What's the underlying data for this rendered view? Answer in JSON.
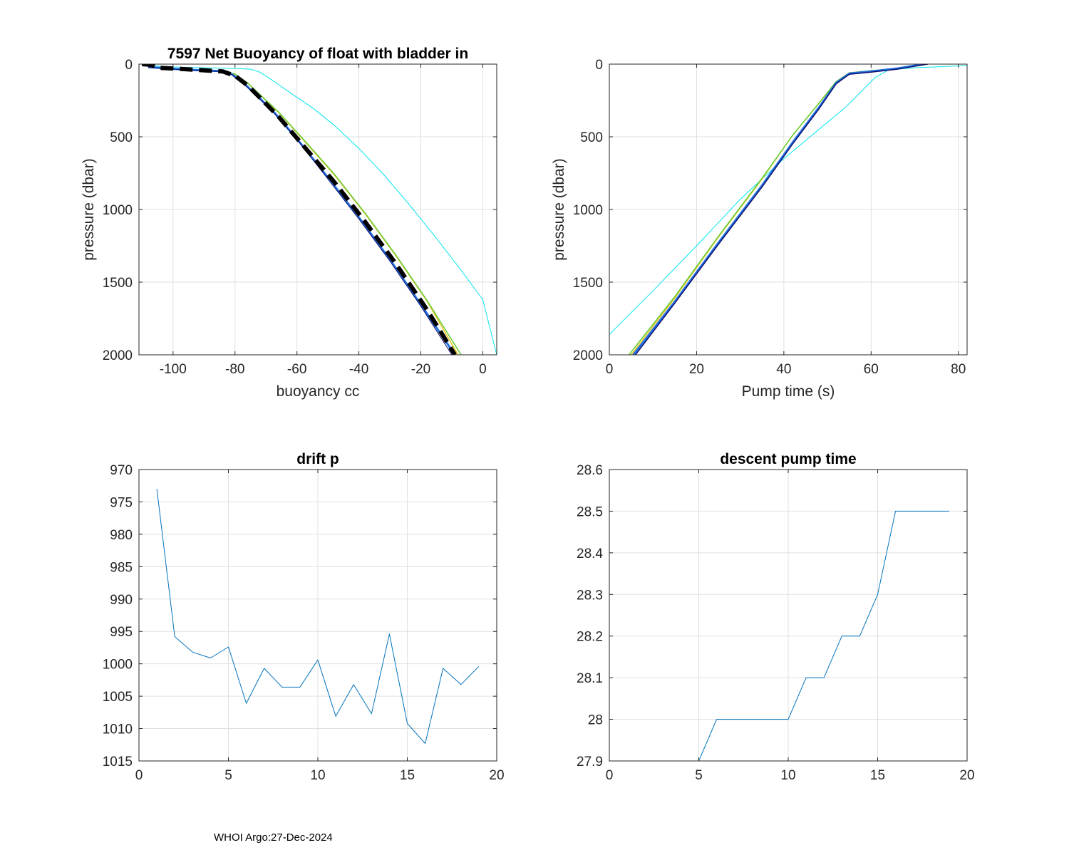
{
  "footer": "WHOI Argo:27-Dec-2024",
  "colors": {
    "default_line": "#0072bd",
    "grid": "#e0e0e0",
    "axis": "#262626",
    "dashed": "#000000"
  },
  "chart_data": [
    {
      "id": "buoyancy",
      "type": "line",
      "title": "7597 Net Buoyancy of float with bladder in",
      "xlabel": "buoyancy cc",
      "ylabel": "pressure (dbar)",
      "xlim": [
        -111,
        4.5
      ],
      "ylim": [
        0,
        2000
      ],
      "y_reversed": true,
      "xticks": [
        -100,
        -80,
        -60,
        -40,
        -20,
        0
      ],
      "yticks": [
        0,
        500,
        1000,
        1500,
        2000
      ],
      "series": [
        {
          "name": "profile-cyan",
          "color": "#00e5ee",
          "width": 1,
          "x": [
            -108,
            -100,
            -90,
            -82,
            -75,
            -72,
            -68,
            -62,
            -55,
            -48,
            -40,
            -32,
            -24,
            -16,
            -8,
            0,
            4.5
          ],
          "y": [
            10,
            20,
            25,
            28,
            35,
            55,
            110,
            200,
            300,
            420,
            580,
            760,
            960,
            1170,
            1390,
            1620,
            2000
          ]
        },
        {
          "name": "profile-yellow",
          "color": "#e6c21a",
          "width": 1.5,
          "x": [
            -108,
            -95,
            -84,
            -80,
            -76,
            -72,
            -66,
            -58,
            -48,
            -38,
            -28,
            -18,
            -8
          ],
          "y": [
            20,
            40,
            50,
            70,
            130,
            210,
            330,
            520,
            760,
            1030,
            1320,
            1630,
            2000
          ]
        },
        {
          "name": "profile-green",
          "color": "#66cc33",
          "width": 1.5,
          "x": [
            -108,
            -95,
            -84,
            -80,
            -76,
            -72,
            -66,
            -58,
            -48,
            -38,
            -28,
            -18,
            -7
          ],
          "y": [
            20,
            40,
            50,
            68,
            128,
            208,
            328,
            515,
            755,
            1025,
            1315,
            1625,
            2000
          ]
        },
        {
          "name": "profile-blue",
          "color": "#1f6fe0",
          "width": 3,
          "x": [
            -108,
            -96,
            -85,
            -81,
            -77,
            -73,
            -67,
            -59,
            -50,
            -40,
            -30,
            -20,
            -9
          ],
          "y": [
            20,
            38,
            48,
            70,
            135,
            215,
            340,
            540,
            780,
            1055,
            1345,
            1655,
            2000
          ]
        },
        {
          "name": "profile-navy",
          "color": "#101070",
          "width": 1,
          "x": [
            -108,
            -96,
            -85,
            -81,
            -77,
            -73,
            -67,
            -59,
            -50,
            -40,
            -30,
            -20,
            -10
          ],
          "y": [
            22,
            40,
            50,
            72,
            138,
            218,
            345,
            545,
            790,
            1065,
            1355,
            1665,
            2000
          ]
        },
        {
          "name": "mean-dashed",
          "color": "#000000",
          "width": 6,
          "dashed": true,
          "x": [
            -110,
            -107,
            -105,
            -100,
            -92,
            -84,
            -80,
            -76,
            -72,
            -66,
            -58,
            -48,
            -38,
            -28,
            -18,
            -9
          ],
          "y": [
            0,
            5,
            25,
            30,
            40,
            50,
            80,
            145,
            230,
            360,
            560,
            810,
            1085,
            1375,
            1690,
            2000
          ]
        }
      ]
    },
    {
      "id": "pumptime",
      "type": "line",
      "title": "",
      "xlabel": "Pump time (s)",
      "ylabel": "pressure (dbar)",
      "xlim": [
        0,
        82
      ],
      "ylim": [
        0,
        2000
      ],
      "y_reversed": true,
      "xticks": [
        0,
        20,
        40,
        60,
        80
      ],
      "yticks": [
        0,
        500,
        1000,
        1500,
        2000
      ],
      "series": [
        {
          "name": "pump-cyan",
          "color": "#00e5ee",
          "width": 1,
          "x": [
            0,
            10,
            20,
            30,
            40,
            48,
            54,
            58,
            61,
            64,
            70,
            82
          ],
          "y": [
            1860,
            1560,
            1250,
            930,
            650,
            450,
            300,
            180,
            90,
            40,
            25,
            10
          ]
        },
        {
          "name": "pump-yellow",
          "color": "#e6c21a",
          "width": 1.5,
          "x": [
            5,
            15,
            25,
            35,
            42,
            48,
            52,
            55,
            60,
            66,
            72
          ],
          "y": [
            2000,
            1610,
            1190,
            790,
            490,
            270,
            120,
            60,
            45,
            30,
            0
          ]
        },
        {
          "name": "pump-green",
          "color": "#66cc33",
          "width": 1.5,
          "x": [
            4.5,
            15,
            25,
            35,
            42,
            48,
            52,
            55,
            60,
            66,
            72
          ],
          "y": [
            2000,
            1600,
            1185,
            785,
            490,
            270,
            120,
            60,
            45,
            30,
            0
          ]
        },
        {
          "name": "pump-blue",
          "color": "#1f6fe0",
          "width": 3,
          "x": [
            5.5,
            15,
            25,
            35,
            42,
            48,
            52,
            55,
            60,
            66,
            72
          ],
          "y": [
            2000,
            1635,
            1230,
            835,
            540,
            300,
            130,
            65,
            50,
            30,
            0
          ]
        },
        {
          "name": "pump-navy",
          "color": "#101070",
          "width": 1.5,
          "x": [
            6,
            15,
            25,
            35,
            42,
            48,
            52,
            55,
            60,
            66,
            73
          ],
          "y": [
            2000,
            1645,
            1240,
            845,
            550,
            310,
            135,
            70,
            55,
            35,
            0
          ]
        }
      ]
    },
    {
      "id": "drift",
      "type": "line",
      "title": "drift p",
      "xlabel": "",
      "ylabel": "",
      "xlim": [
        0,
        20
      ],
      "ylim": [
        970,
        1015
      ],
      "y_reversed": true,
      "xticks": [
        0,
        5,
        10,
        15,
        20
      ],
      "yticks": [
        970,
        975,
        980,
        985,
        990,
        995,
        1000,
        1005,
        1010,
        1015
      ],
      "series": [
        {
          "name": "drift-p",
          "color": "#0072bd",
          "width": 1,
          "x": [
            1,
            2,
            3,
            4,
            5,
            6,
            7,
            8,
            9,
            10,
            11,
            12,
            13,
            14,
            15,
            16,
            17,
            18,
            19
          ],
          "y": [
            973,
            995.8,
            998.2,
            999.1,
            997.4,
            1006.1,
            1000.7,
            1003.6,
            1003.6,
            999.4,
            1008.1,
            1003.2,
            1007.7,
            995.4,
            1009.2,
            1012.3,
            1000.7,
            1003.2,
            1000.4
          ]
        }
      ]
    },
    {
      "id": "descent",
      "type": "line",
      "title": "descent pump time",
      "xlabel": "",
      "ylabel": "",
      "xlim": [
        0,
        20
      ],
      "ylim": [
        27.9,
        28.6
      ],
      "y_reversed": false,
      "xticks": [
        0,
        5,
        10,
        15,
        20
      ],
      "yticks": [
        27.9,
        28,
        28.1,
        28.2,
        28.3,
        28.4,
        28.5,
        28.6
      ],
      "ytick_labels": [
        "27.9",
        "28",
        "28.1",
        "28.2",
        "28.3",
        "28.4",
        "28.5",
        "28.6"
      ],
      "series": [
        {
          "name": "descent-pump",
          "color": "#0072bd",
          "width": 1,
          "x": [
            1,
            2,
            3,
            4,
            5,
            6,
            7,
            8,
            9,
            10,
            11,
            12,
            13,
            14,
            15,
            16,
            17,
            18,
            19
          ],
          "y": [
            27.9,
            27.9,
            27.9,
            27.9,
            27.9,
            28.0,
            28.0,
            28.0,
            28.0,
            28.0,
            28.1,
            28.1,
            28.2,
            28.2,
            28.3,
            28.5,
            28.5,
            28.5,
            28.5
          ]
        }
      ]
    }
  ]
}
